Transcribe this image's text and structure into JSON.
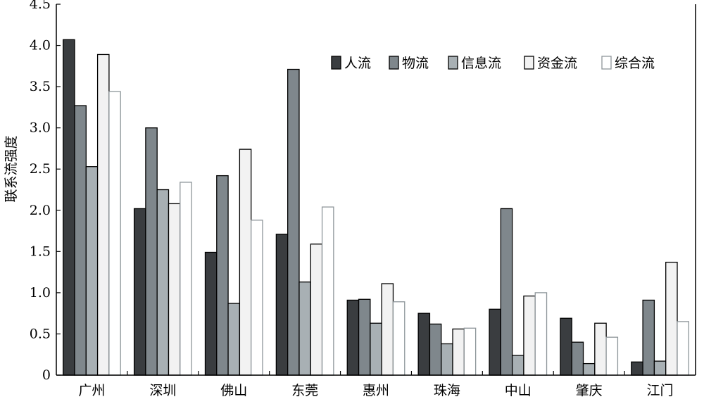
{
  "chart_data": {
    "type": "bar",
    "title": "",
    "xlabel": "",
    "ylabel": "联系流强度",
    "ylim": [
      0,
      4.5
    ],
    "yticks": [
      "0",
      "0.5",
      "1.0",
      "1.5",
      "2.0",
      "2.5",
      "3.0",
      "3.5",
      "4.0",
      "4.5"
    ],
    "grid": false,
    "legend_position": "top-right",
    "categories": [
      "广州",
      "深圳",
      "佛山",
      "东莞",
      "惠州",
      "珠海",
      "中山",
      "肇庆",
      "江门"
    ],
    "series": [
      {
        "name": "人流",
        "fill": "#3a3d40",
        "stroke": "#000000",
        "values": [
          4.07,
          2.02,
          1.49,
          1.71,
          0.91,
          0.75,
          0.8,
          0.69,
          0.16
        ]
      },
      {
        "name": "物流",
        "fill": "#7f878c",
        "stroke": "#000000",
        "values": [
          3.27,
          3.0,
          2.42,
          3.71,
          0.92,
          0.62,
          2.02,
          0.4,
          0.91
        ]
      },
      {
        "name": "信息流",
        "fill": "#a8b0b4",
        "stroke": "#000000",
        "values": [
          2.53,
          2.25,
          0.87,
          1.13,
          0.63,
          0.38,
          0.24,
          0.14,
          0.17
        ]
      },
      {
        "name": "资金流",
        "fill": "#f2f2f2",
        "stroke": "#000000",
        "values": [
          3.89,
          2.08,
          2.74,
          1.59,
          1.11,
          0.56,
          0.96,
          0.63,
          1.37
        ]
      },
      {
        "name": "综合流",
        "fill": "#ffffff",
        "stroke": "#8e969a",
        "values": [
          3.44,
          2.34,
          1.88,
          2.04,
          0.89,
          0.57,
          1.0,
          0.46,
          0.65
        ]
      }
    ]
  }
}
